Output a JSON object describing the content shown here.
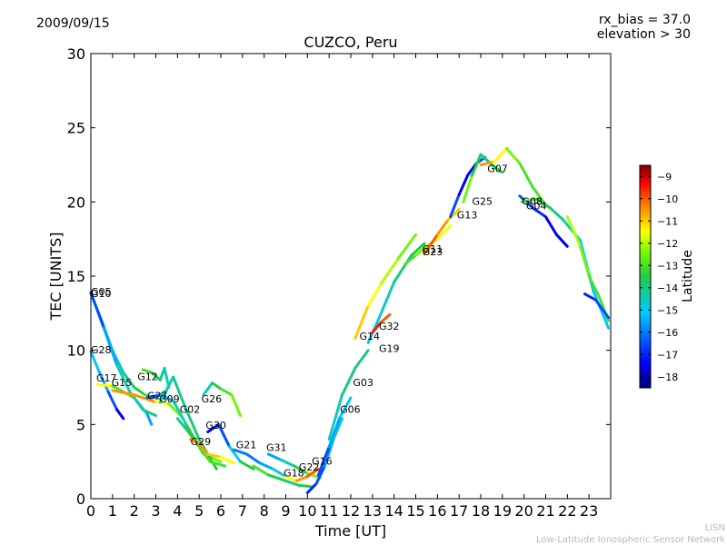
{
  "header": {
    "date": "2009/09/15",
    "info_line1": "rx_bias = 37.0",
    "info_line2": "elevation > 30"
  },
  "footer": {
    "credit_line1": "LISN",
    "credit_line2": "Low-Latitude Ionospheric Sensor Network"
  },
  "chart_data": {
    "type": "scatter",
    "title": "CUZCO, Peru",
    "xlabel": "Time [UT]",
    "ylabel": "TEC [UNITS]",
    "xlim": [
      0,
      24
    ],
    "ylim": [
      0,
      30
    ],
    "xticks": [
      0,
      1,
      2,
      3,
      4,
      5,
      6,
      7,
      8,
      9,
      10,
      11,
      12,
      13,
      14,
      15,
      16,
      17,
      18,
      19,
      20,
      21,
      22,
      23
    ],
    "yticks": [
      0,
      5,
      10,
      15,
      20,
      25,
      30
    ],
    "grid": false,
    "colorbar": {
      "label": "Latitude",
      "range": [
        -18.5,
        -8.5
      ],
      "ticks": [
        -9,
        -10,
        -11,
        -12,
        -13,
        -14,
        -15,
        -16,
        -17,
        -18
      ],
      "colormap": [
        "#00007f",
        "#0000ff",
        "#007fff",
        "#00ffff",
        "#7fff7f",
        "#ffff00",
        "#ff7f00",
        "#ff0000",
        "#7f0000"
      ]
    },
    "series": [
      {
        "name": "G10",
        "points": [
          [
            0.0,
            13.8
          ],
          [
            0.5,
            12.0
          ],
          [
            1.0,
            10.0
          ],
          [
            1.5,
            8.5
          ],
          [
            2.0,
            7.5
          ],
          [
            2.5,
            7.0
          ],
          [
            3.0,
            6.8
          ],
          [
            3.5,
            7.3
          ]
        ],
        "lat": [
          -16,
          -15,
          -15,
          -14,
          -14,
          -13,
          -13,
          -14
        ]
      },
      {
        "name": "G05",
        "points": [
          [
            0.0,
            13.9
          ],
          [
            0.6,
            11.5
          ],
          [
            1.2,
            9.0
          ],
          [
            1.8,
            7.2
          ],
          [
            2.4,
            6.0
          ],
          [
            3.0,
            5.6
          ]
        ],
        "lat": [
          -17,
          -16,
          -15,
          -14,
          -14,
          -14
        ]
      },
      {
        "name": "G28",
        "points": [
          [
            0.0,
            9.9
          ],
          [
            0.4,
            8.5
          ],
          [
            0.8,
            7.2
          ],
          [
            1.2,
            6.0
          ],
          [
            1.5,
            5.4
          ]
        ],
        "lat": [
          -15,
          -15,
          -16,
          -17,
          -18
        ]
      },
      {
        "name": "G17",
        "points": [
          [
            0.3,
            7.7
          ],
          [
            1.0,
            7.6
          ],
          [
            2.0,
            6.8
          ],
          [
            2.6,
            5.7
          ],
          [
            2.8,
            5.0
          ]
        ],
        "lat": [
          -11,
          -12,
          -14,
          -15,
          -16
        ]
      },
      {
        "name": "G15",
        "points": [
          [
            1.0,
            7.3
          ],
          [
            2.0,
            7.0
          ],
          [
            3.0,
            6.5
          ],
          [
            3.6,
            6.4
          ],
          [
            4.2,
            5.5
          ]
        ],
        "lat": [
          -11,
          -10,
          -11,
          -12,
          -13
        ]
      },
      {
        "name": "G12",
        "points": [
          [
            2.4,
            8.7
          ],
          [
            2.8,
            8.5
          ],
          [
            3.2,
            8.0
          ],
          [
            3.4,
            8.8
          ],
          [
            3.6,
            7.5
          ]
        ],
        "lat": [
          -13,
          -13,
          -14,
          -14,
          -15
        ]
      },
      {
        "name": "G27",
        "points": [
          [
            2.6,
            6.8
          ],
          [
            3.2,
            7.0
          ],
          [
            3.8,
            6.6
          ],
          [
            4.4,
            5.0
          ],
          [
            5.2,
            3.0
          ],
          [
            6.0,
            2.5
          ]
        ],
        "lat": [
          -17,
          -16,
          -15,
          -14,
          -13,
          -12
        ]
      },
      {
        "name": "G09",
        "points": [
          [
            3.2,
            6.5
          ],
          [
            3.8,
            8.2
          ],
          [
            4.4,
            6.0
          ],
          [
            5.0,
            4.0
          ],
          [
            5.8,
            2.0
          ]
        ],
        "lat": [
          -15,
          -14,
          -14,
          -14,
          -13
        ]
      },
      {
        "name": "G02",
        "points": [
          [
            4.0,
            5.4
          ],
          [
            4.5,
            4.5
          ],
          [
            5.0,
            3.5
          ],
          [
            5.5,
            2.5
          ],
          [
            6.2,
            2.2
          ]
        ],
        "lat": [
          -14,
          -14,
          -13,
          -13,
          -13
        ]
      },
      {
        "name": "G26",
        "points": [
          [
            5.2,
            7.0
          ],
          [
            5.6,
            7.8
          ],
          [
            6.0,
            7.4
          ],
          [
            6.5,
            7.0
          ],
          [
            6.9,
            5.6
          ]
        ],
        "lat": [
          -15,
          -14,
          -13,
          -13,
          -12
        ]
      },
      {
        "name": "G30",
        "points": [
          [
            5.4,
            4.5
          ],
          [
            5.9,
            5.0
          ],
          [
            6.4,
            3.5
          ],
          [
            6.9,
            2.5
          ],
          [
            7.5,
            2.0
          ]
        ],
        "lat": [
          -18,
          -17,
          -16,
          -14,
          -13
        ]
      },
      {
        "name": "G29",
        "points": [
          [
            4.6,
            4.0
          ],
          [
            5.0,
            3.7
          ],
          [
            5.4,
            3.0
          ],
          [
            6.0,
            2.8
          ],
          [
            6.6,
            2.4
          ]
        ],
        "lat": [
          -11,
          -10,
          -11,
          -11,
          -12
        ]
      },
      {
        "name": "G21",
        "points": [
          [
            6.6,
            3.3
          ],
          [
            7.2,
            3.0
          ],
          [
            7.8,
            2.4
          ],
          [
            8.4,
            2.0
          ],
          [
            9.0,
            1.5
          ]
        ],
        "lat": [
          -16,
          -16,
          -16,
          -15,
          -15
        ]
      },
      {
        "name": "G31",
        "points": [
          [
            8.2,
            3.0
          ],
          [
            8.8,
            2.6
          ],
          [
            9.4,
            2.2
          ],
          [
            10.0,
            1.7
          ],
          [
            10.6,
            1.4
          ]
        ],
        "lat": [
          -16,
          -15,
          -14,
          -13,
          -12
        ]
      },
      {
        "name": "G18",
        "points": [
          [
            7.5,
            2.2
          ],
          [
            8.2,
            1.6
          ],
          [
            9.0,
            1.2
          ],
          [
            9.6,
            0.9
          ],
          [
            10.2,
            0.8
          ]
        ],
        "lat": [
          -13,
          -13,
          -14,
          -14,
          -13
        ]
      },
      {
        "name": "G22",
        "points": [
          [
            9.0,
            1.5
          ],
          [
            9.5,
            1.2
          ],
          [
            10.0,
            1.5
          ],
          [
            10.5,
            2.0
          ]
        ],
        "lat": [
          -12,
          -11,
          -10,
          -10
        ]
      },
      {
        "name": "G16",
        "points": [
          [
            10.0,
            0.4
          ],
          [
            10.4,
            1.0
          ],
          [
            10.8,
            2.2
          ],
          [
            11.2,
            4.0
          ],
          [
            11.6,
            5.4
          ]
        ],
        "lat": [
          -17,
          -17,
          -16,
          -15,
          -14
        ]
      },
      {
        "name": "G06",
        "points": [
          [
            10.5,
            1.6
          ],
          [
            11.0,
            3.5
          ],
          [
            11.5,
            5.5
          ],
          [
            12.0,
            6.8
          ]
        ],
        "lat": [
          -17,
          -16,
          -15,
          -15
        ]
      },
      {
        "name": "G03",
        "points": [
          [
            11.0,
            4.0
          ],
          [
            11.6,
            7.0
          ],
          [
            12.2,
            8.8
          ],
          [
            12.8,
            10.0
          ]
        ],
        "lat": [
          -15,
          -14,
          -14,
          -14
        ]
      },
      {
        "name": "G14",
        "points": [
          [
            12.2,
            10.8
          ],
          [
            12.8,
            13.0
          ],
          [
            13.4,
            14.5
          ],
          [
            14.2,
            16.2
          ],
          [
            15.0,
            17.8
          ]
        ],
        "lat": [
          -11,
          -11,
          -12,
          -12,
          -13
        ]
      },
      {
        "name": "G19",
        "points": [
          [
            12.8,
            10.5
          ],
          [
            13.4,
            12.5
          ],
          [
            14.0,
            14.6
          ],
          [
            14.8,
            16.4
          ],
          [
            15.4,
            17.2
          ]
        ],
        "lat": [
          -15,
          -15,
          -14,
          -14,
          -13
        ]
      },
      {
        "name": "G32",
        "points": [
          [
            13.0,
            11.2
          ],
          [
            13.4,
            11.9
          ],
          [
            13.8,
            12.4
          ]
        ],
        "lat": [
          -9,
          -10,
          -10
        ]
      },
      {
        "name": "G11",
        "points": [
          [
            14.5,
            15.8
          ],
          [
            15.0,
            16.4
          ],
          [
            15.5,
            17.0
          ],
          [
            16.0,
            17.5
          ],
          [
            16.6,
            18.4
          ]
        ],
        "lat": [
          -13,
          -13,
          -12,
          -12,
          -11
        ]
      },
      {
        "name": "G23",
        "points": [
          [
            15.4,
            16.5
          ],
          [
            16.0,
            17.8
          ],
          [
            16.5,
            18.8
          ],
          [
            17.0,
            19.5
          ]
        ],
        "lat": [
          -10,
          -10,
          -11,
          -11
        ]
      },
      {
        "name": "G13",
        "points": [
          [
            16.6,
            19.0
          ],
          [
            17.0,
            20.5
          ],
          [
            17.4,
            21.8
          ],
          [
            17.8,
            22.6
          ],
          [
            18.2,
            23.0
          ]
        ],
        "lat": [
          -16,
          -17,
          -18,
          -17,
          -16
        ]
      },
      {
        "name": "G25",
        "points": [
          [
            17.2,
            20.0
          ],
          [
            17.6,
            21.8
          ],
          [
            18.0,
            23.2
          ],
          [
            18.6,
            22.4
          ],
          [
            19.0,
            22.0
          ]
        ],
        "lat": [
          -12,
          -13,
          -14,
          -14,
          -13
        ]
      },
      {
        "name": "G07",
        "points": [
          [
            18.0,
            22.5
          ],
          [
            18.6,
            22.7
          ],
          [
            19.2,
            23.6
          ],
          [
            19.8,
            22.6
          ],
          [
            20.4,
            21.0
          ],
          [
            21.0,
            19.8
          ]
        ],
        "lat": [
          -10,
          -11,
          -12,
          -13,
          -13,
          -13
        ]
      },
      {
        "name": "G08",
        "points": [
          [
            19.8,
            20.4
          ],
          [
            20.4,
            19.6
          ],
          [
            21.0,
            19.0
          ],
          [
            21.5,
            17.8
          ],
          [
            22.0,
            17.0
          ]
        ],
        "lat": [
          -16,
          -17,
          -17,
          -18,
          -17
        ]
      },
      {
        "name": "G04",
        "points": [
          [
            19.9,
            20.0
          ],
          [
            20.6,
            20.2
          ],
          [
            21.2,
            19.6
          ],
          [
            21.8,
            18.8
          ],
          [
            22.6,
            17.4
          ],
          [
            23.2,
            14.0
          ],
          [
            23.9,
            11.5
          ]
        ],
        "lat": [
          -13,
          -13,
          -14,
          -14,
          -15,
          -15,
          -15
        ]
      },
      {
        "name": "",
        "points": [
          [
            22.0,
            19.0
          ],
          [
            22.6,
            17.0
          ],
          [
            23.0,
            15.0
          ],
          [
            23.5,
            13.5
          ],
          [
            23.9,
            12.0
          ]
        ],
        "lat": [
          -12,
          -12,
          -13,
          -13,
          -13
        ]
      },
      {
        "name": "",
        "points": [
          [
            22.8,
            13.8
          ],
          [
            23.3,
            13.4
          ],
          [
            23.9,
            12.2
          ]
        ],
        "lat": [
          -17,
          -17,
          -16
        ]
      }
    ],
    "labels": [
      {
        "text": "G10",
        "x": 0.0,
        "y": 13.6
      },
      {
        "text": "G05",
        "x": 0.0,
        "y": 13.7
      },
      {
        "text": "G28",
        "x": 0.0,
        "y": 9.8
      },
      {
        "text": "G17",
        "x": 0.25,
        "y": 7.9
      },
      {
        "text": "G15",
        "x": 0.95,
        "y": 7.6
      },
      {
        "text": "G12",
        "x": 2.15,
        "y": 8.0
      },
      {
        "text": "G27",
        "x": 2.6,
        "y": 6.7
      },
      {
        "text": "G09",
        "x": 3.15,
        "y": 6.5
      },
      {
        "text": "G02",
        "x": 4.1,
        "y": 5.8
      },
      {
        "text": "G26",
        "x": 5.1,
        "y": 6.5
      },
      {
        "text": "G30",
        "x": 5.3,
        "y": 4.7
      },
      {
        "text": "G29",
        "x": 4.6,
        "y": 3.6
      },
      {
        "text": "G21",
        "x": 6.7,
        "y": 3.4
      },
      {
        "text": "G31",
        "x": 8.1,
        "y": 3.2
      },
      {
        "text": "G18",
        "x": 8.9,
        "y": 1.5
      },
      {
        "text": "G22",
        "x": 9.6,
        "y": 1.9
      },
      {
        "text": "G16",
        "x": 10.2,
        "y": 2.3
      },
      {
        "text": "G06",
        "x": 11.5,
        "y": 5.8
      },
      {
        "text": "G03",
        "x": 12.1,
        "y": 7.6
      },
      {
        "text": "G14",
        "x": 12.4,
        "y": 10.7
      },
      {
        "text": "G19",
        "x": 13.3,
        "y": 9.9
      },
      {
        "text": "G32",
        "x": 13.3,
        "y": 11.4
      },
      {
        "text": "G11",
        "x": 15.3,
        "y": 16.6
      },
      {
        "text": "G23",
        "x": 15.3,
        "y": 16.4
      },
      {
        "text": "G13",
        "x": 16.9,
        "y": 18.9
      },
      {
        "text": "G25",
        "x": 17.6,
        "y": 19.8
      },
      {
        "text": "G07",
        "x": 18.3,
        "y": 22.0
      },
      {
        "text": "G08",
        "x": 19.9,
        "y": 19.8
      },
      {
        "text": "G04",
        "x": 20.1,
        "y": 19.5
      }
    ]
  }
}
